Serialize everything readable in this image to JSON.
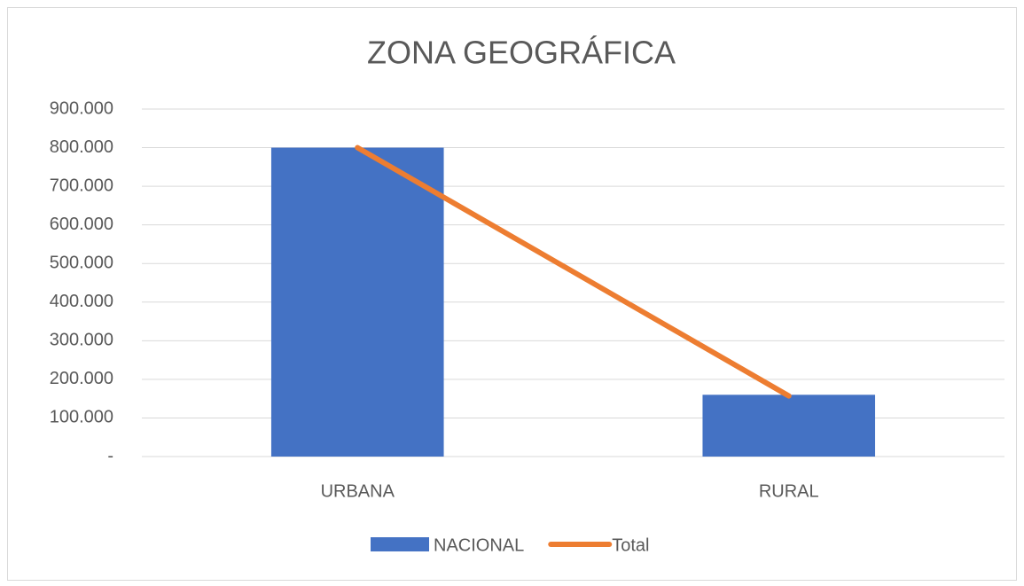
{
  "chart_data": {
    "type": "combo",
    "title": "ZONA GEOGRÁFICA",
    "categories": [
      "URBANA",
      "RURAL"
    ],
    "series": [
      {
        "name": "NACIONAL",
        "type": "bar",
        "color": "#4472c4",
        "values": [
          800000,
          160000
        ]
      },
      {
        "name": "Total",
        "type": "line",
        "color": "#ed7d31",
        "values": [
          800000,
          157000
        ]
      }
    ],
    "ylim": [
      0,
      900000
    ],
    "yticks": [
      {
        "value": 0,
        "label": "-"
      },
      {
        "value": 100000,
        "label": "100.000"
      },
      {
        "value": 200000,
        "label": "200.000"
      },
      {
        "value": 300000,
        "label": "300.000"
      },
      {
        "value": 400000,
        "label": "400.000"
      },
      {
        "value": 500000,
        "label": "500.000"
      },
      {
        "value": 600000,
        "label": "600.000"
      },
      {
        "value": 700000,
        "label": "700.000"
      },
      {
        "value": 800000,
        "label": "800.000"
      },
      {
        "value": 900000,
        "label": "900.000"
      }
    ],
    "grid": true,
    "legend": "bottom"
  }
}
